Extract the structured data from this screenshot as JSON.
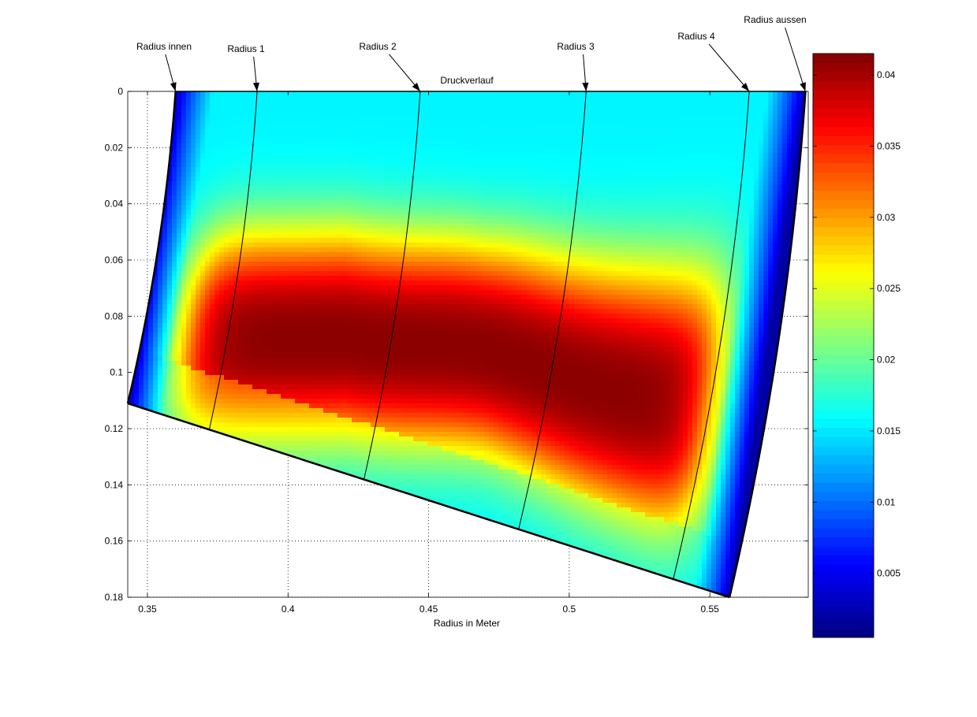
{
  "chart_data": {
    "type": "heatmap",
    "title": "Druckverlauf",
    "xlabel": "Radius in Meter",
    "ylabel": "",
    "xlim": [
      0.343,
      0.585
    ],
    "ylim": [
      0,
      0.18
    ],
    "y_reversed": true,
    "grid": true,
    "grid_style": "dotted",
    "colormap": "jet",
    "xticks": [
      0.35,
      0.4,
      0.45,
      0.5,
      0.55
    ],
    "yticks": [
      0,
      0.02,
      0.04,
      0.06,
      0.08,
      0.1,
      0.12,
      0.14,
      0.16,
      0.18
    ],
    "colorbar": {
      "range": [
        0.0005,
        0.0415
      ],
      "ticks": [
        0.005,
        0.01,
        0.015,
        0.02,
        0.025,
        0.03,
        0.035,
        0.04
      ],
      "placement": "right"
    },
    "domain": {
      "top_left": [
        0.36,
        0
      ],
      "top_right": [
        0.584,
        0
      ],
      "bottom_left": [
        0.343,
        0.111
      ],
      "bottom_right": [
        0.557,
        0.18
      ],
      "bottom_edge": "straight line from (0.343, 0.111) to (0.557, 0.18)"
    },
    "pressure_peak": {
      "approx_max": 0.041,
      "high_band_depth": [
        0.05,
        0.13
      ],
      "approx_boundary_value": 0.003
    },
    "radius_lines": [
      {
        "label": "Radius innen",
        "r_top": 0.36,
        "r_bottom": 0.343
      },
      {
        "label": "Radius 1",
        "r_top": 0.389,
        "r_bottom": 0.372
      },
      {
        "label": "Radius 2",
        "r_top": 0.447,
        "r_bottom": 0.427
      },
      {
        "label": "Radius 3",
        "r_top": 0.506,
        "r_bottom": 0.482
      },
      {
        "label": "Radius 4",
        "r_top": 0.564,
        "r_bottom": 0.537
      },
      {
        "label": "Radius aussen",
        "r_top": 0.584,
        "r_bottom": 0.557
      }
    ]
  }
}
